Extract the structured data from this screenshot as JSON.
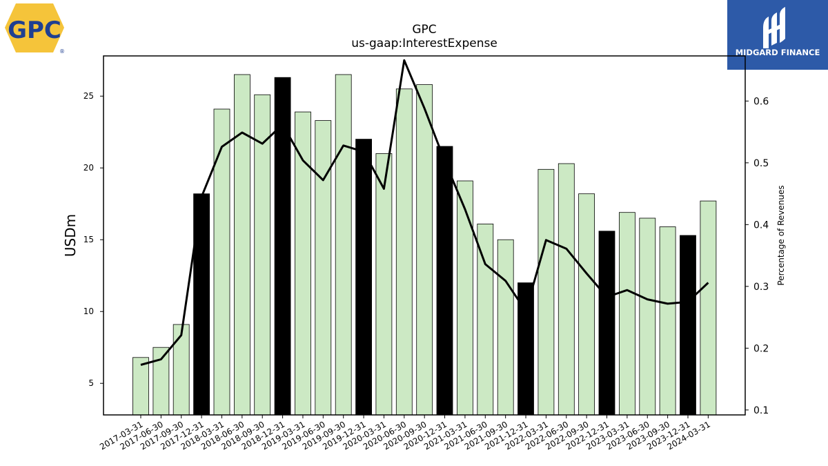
{
  "logos": {
    "gpc_text": "GPC",
    "gpc_reg": "®",
    "midgard_text": "MIDGARD FINANCE",
    "midgard_color": "#2d5aa8",
    "gpc_color": "#f5c43a",
    "gpc_text_color": "#1f3f91"
  },
  "chart_data": {
    "type": "bar",
    "title": "GPC",
    "subtitle": "us-gaap:InterestExpense",
    "ylabel": "USDm",
    "ylabel_right": "Percentage of Revenues",
    "ylim": [
      2.8,
      27.8
    ],
    "ylim_right": [
      0.092,
      0.673
    ],
    "yticks": [
      5,
      10,
      15,
      20,
      25
    ],
    "yticks_right": [
      0.1,
      0.2,
      0.3,
      0.4,
      0.5,
      0.6
    ],
    "grid": false,
    "legend": "none",
    "bar_color": "#cce9c4",
    "highlight_color": "#000000",
    "categories": [
      "2017-03-31",
      "2017-06-30",
      "2017-09-30",
      "2017-12-31",
      "2018-03-31",
      "2018-06-30",
      "2018-09-30",
      "2018-12-31",
      "2019-03-31",
      "2019-06-30",
      "2019-09-30",
      "2019-12-31",
      "2020-03-31",
      "2020-06-30",
      "2020-09-30",
      "2020-12-31",
      "2021-03-31",
      "2021-06-30",
      "2021-09-30",
      "2021-12-31",
      "2022-03-31",
      "2022-06-30",
      "2022-09-30",
      "2022-12-31",
      "2023-03-31",
      "2023-06-30",
      "2023-09-30",
      "2023-12-31",
      "2024-03-31"
    ],
    "series": [
      {
        "type": "bar",
        "axis": "left",
        "values": [
          6.8,
          7.5,
          9.1,
          18.2,
          24.1,
          26.5,
          25.1,
          26.3,
          23.9,
          23.3,
          26.5,
          22.0,
          21.0,
          25.5,
          25.8,
          21.5,
          19.1,
          16.1,
          15.0,
          12.0,
          19.9,
          20.3,
          18.2,
          15.6,
          16.9,
          16.5,
          15.9,
          15.3,
          17.7
        ],
        "highlight": [
          false,
          false,
          false,
          true,
          false,
          false,
          false,
          true,
          false,
          false,
          false,
          true,
          false,
          false,
          false,
          true,
          false,
          false,
          false,
          true,
          false,
          false,
          false,
          true,
          false,
          false,
          false,
          true,
          false
        ]
      },
      {
        "type": "line",
        "axis": "right",
        "values": [
          0.173,
          0.182,
          0.221,
          0.445,
          0.526,
          0.549,
          0.531,
          0.562,
          0.504,
          0.472,
          0.528,
          0.518,
          0.458,
          0.666,
          0.588,
          0.503,
          0.425,
          0.336,
          0.309,
          0.26,
          0.375,
          0.361,
          0.321,
          0.283,
          0.294,
          0.279,
          0.272,
          0.275,
          0.306
        ]
      }
    ]
  }
}
